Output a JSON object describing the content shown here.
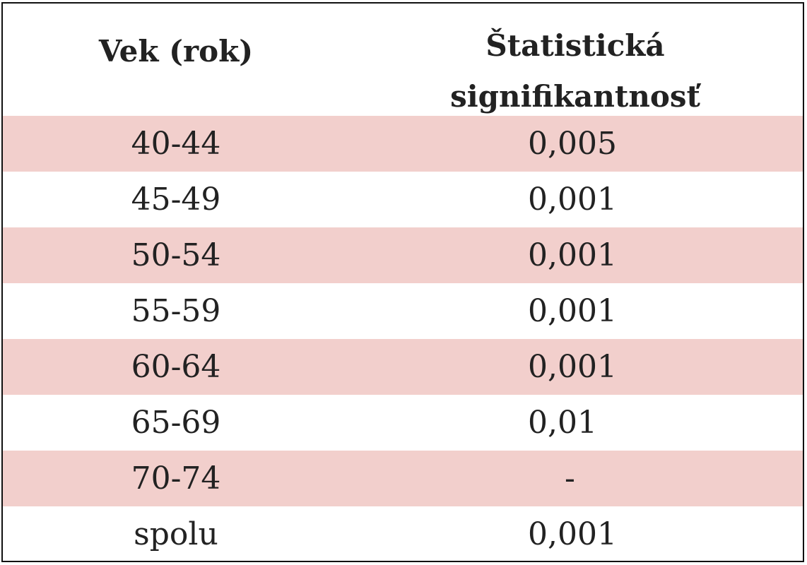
{
  "table": {
    "header": [
      "Vek (rok)",
      "Štatistická signifikantnosť"
    ],
    "rows": [
      [
        "40-44",
        "0,005"
      ],
      [
        "45-49",
        "0,001"
      ],
      [
        "50-54",
        "0,001"
      ],
      [
        "55-59",
        "0,001"
      ],
      [
        "60-64",
        "0,001"
      ],
      [
        "65-69",
        "0,01"
      ],
      [
        "70-74",
        "-"
      ],
      [
        "spolu",
        "0,001"
      ]
    ]
  }
}
